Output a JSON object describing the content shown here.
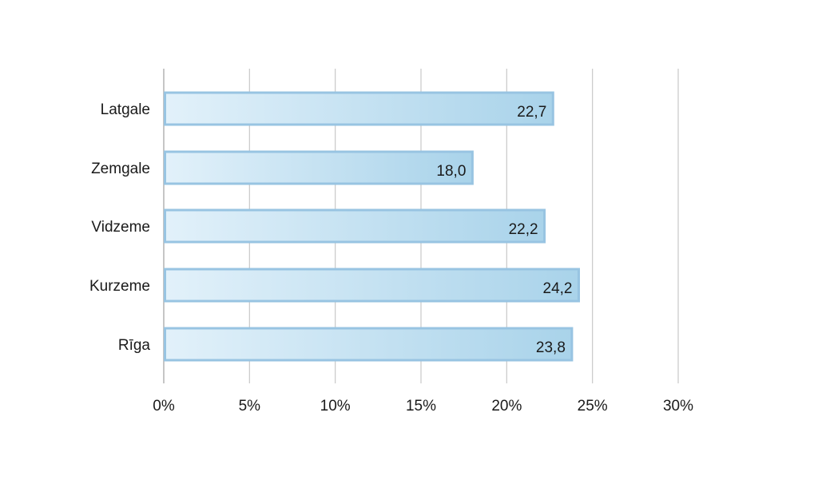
{
  "chart_data": {
    "type": "bar",
    "orientation": "horizontal",
    "categories": [
      "Latgale",
      "Zemgale",
      "Vidzeme",
      "Kurzeme",
      "Rīga"
    ],
    "values": [
      22.7,
      18.0,
      22.2,
      24.2,
      23.8
    ],
    "value_labels": [
      "22,7",
      "18,0",
      "22,2",
      "24,2",
      "23,8"
    ],
    "x_ticks": [
      "0%",
      "5%",
      "10%",
      "15%",
      "20%",
      "25%",
      "30%"
    ],
    "xlim": [
      0,
      30
    ],
    "title": "",
    "xlabel": "",
    "ylabel": "",
    "grid": true,
    "legend": "none",
    "colors": {
      "bar_fill_light": "#e2f1fa",
      "bar_fill_dark": "#a9d3ea",
      "bar_border": "#98c4e2",
      "grid": "#c8c8c8"
    }
  }
}
